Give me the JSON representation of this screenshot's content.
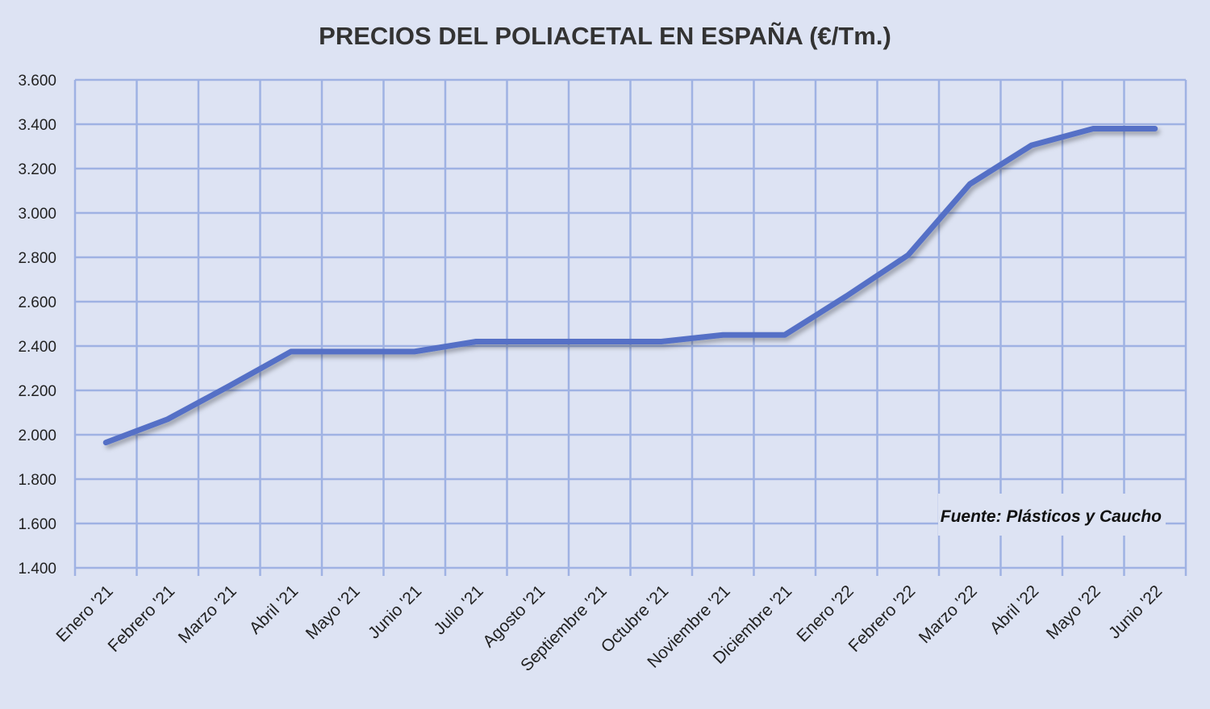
{
  "chart_data": {
    "type": "line",
    "title": "PRECIOS DEL POLIACETAL  EN ESPAÑA (€/Tm.)",
    "xlabel": "",
    "ylabel": "",
    "ylim": [
      1400,
      3600
    ],
    "yticks": [
      1400,
      1600,
      1800,
      2000,
      2200,
      2400,
      2600,
      2800,
      3000,
      3200,
      3400,
      3600
    ],
    "ytick_labels": [
      "1.400",
      "1.600",
      "1.800",
      "2.000",
      "2.200",
      "2.400",
      "2.600",
      "2.800",
      "3.000",
      "3.200",
      "3.400",
      "3.600"
    ],
    "grid": true,
    "categories": [
      "Enero '21",
      "Febrero '21",
      "Marzo '21",
      "Abril '21",
      "Mayo '21",
      "Junio '21",
      "Julio '21",
      "Agosto '21",
      "Septiembre '21",
      "Octubre '21",
      "Noviembre '21",
      "Diciembre '21",
      "Enero '22",
      "Febrero '22",
      "Marzo '22",
      "Abril '22",
      "Mayo '22",
      "Junio '22"
    ],
    "series": [
      {
        "name": "Poliacetal",
        "color": "#5470c6",
        "values": [
          1965,
          2070,
          2220,
          2375,
          2375,
          2375,
          2420,
          2420,
          2420,
          2420,
          2450,
          2450,
          2625,
          2810,
          3130,
          3305,
          3380,
          3380
        ]
      }
    ],
    "annotation": "Fuente: Plásticos y Caucho"
  }
}
